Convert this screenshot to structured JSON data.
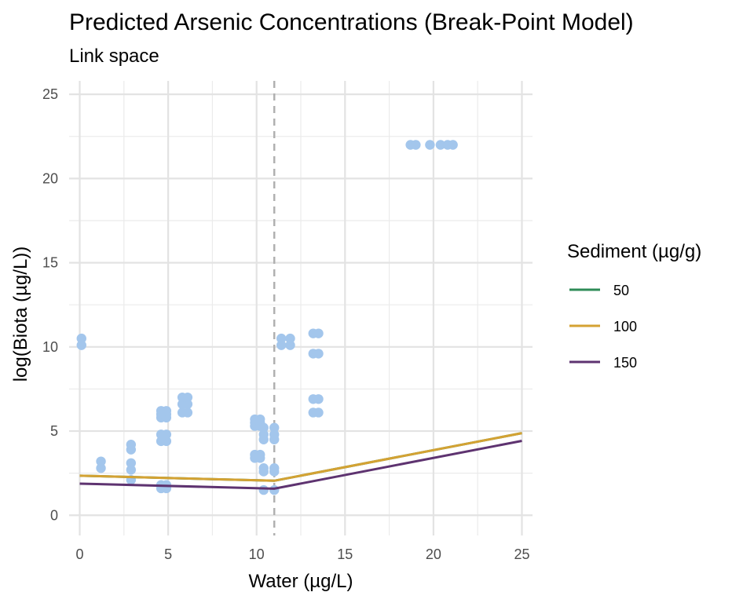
{
  "chart_data": {
    "type": "scatter",
    "title": "Predicted Arsenic Concentrations (Break-Point Model)",
    "subtitle": "Link space",
    "xlabel": "Water (µg/L)",
    "ylabel": "log(Biota (µg/L))",
    "xlim": [
      -0.6,
      25.6
    ],
    "ylim": [
      -1.2,
      25.8
    ],
    "x_ticks": [
      0,
      5,
      10,
      15,
      20,
      25
    ],
    "y_ticks": [
      0,
      5,
      10,
      15,
      20,
      25
    ],
    "x_tick_labels": [
      "0",
      "5",
      "10",
      "15",
      "20",
      "25"
    ],
    "y_tick_labels": [
      "0",
      "5",
      "10",
      "15",
      "20",
      "25"
    ],
    "grid": true,
    "point_color": "#a3c6ec",
    "breakpoint": {
      "x": 11,
      "style": "dashed",
      "color": "#b0b0b0"
    },
    "points": [
      [
        0.1,
        10.1
      ],
      [
        0.1,
        10.5
      ],
      [
        1.2,
        2.8
      ],
      [
        1.2,
        3.2
      ],
      [
        2.9,
        2.1
      ],
      [
        2.9,
        2.7
      ],
      [
        2.9,
        3.1
      ],
      [
        2.9,
        3.9
      ],
      [
        2.9,
        4.2
      ],
      [
        4.6,
        1.6
      ],
      [
        4.6,
        1.8
      ],
      [
        4.6,
        4.4
      ],
      [
        4.6,
        4.8
      ],
      [
        4.6,
        5.8
      ],
      [
        4.6,
        6.0
      ],
      [
        4.6,
        6.2
      ],
      [
        4.9,
        1.6
      ],
      [
        4.9,
        1.8
      ],
      [
        4.9,
        4.4
      ],
      [
        4.9,
        4.8
      ],
      [
        4.9,
        5.8
      ],
      [
        4.9,
        6.0
      ],
      [
        4.9,
        6.2
      ],
      [
        5.8,
        6.1
      ],
      [
        5.8,
        6.6
      ],
      [
        5.8,
        7.0
      ],
      [
        6.1,
        6.1
      ],
      [
        6.1,
        6.6
      ],
      [
        6.1,
        7.0
      ],
      [
        9.9,
        3.4
      ],
      [
        9.9,
        3.6
      ],
      [
        9.9,
        5.3
      ],
      [
        9.9,
        5.5
      ],
      [
        9.9,
        5.7
      ],
      [
        10.2,
        3.4
      ],
      [
        10.2,
        3.6
      ],
      [
        10.2,
        5.3
      ],
      [
        10.2,
        5.5
      ],
      [
        10.2,
        5.7
      ],
      [
        10.4,
        1.5
      ],
      [
        10.4,
        2.6
      ],
      [
        10.4,
        2.8
      ],
      [
        10.4,
        4.5
      ],
      [
        10.4,
        4.8
      ],
      [
        10.4,
        5.2
      ],
      [
        11.0,
        1.5
      ],
      [
        11.0,
        2.6
      ],
      [
        11.0,
        2.8
      ],
      [
        11.0,
        4.5
      ],
      [
        11.0,
        4.8
      ],
      [
        11.0,
        5.2
      ],
      [
        11.4,
        10.1
      ],
      [
        11.4,
        10.5
      ],
      [
        11.9,
        10.1
      ],
      [
        11.9,
        10.5
      ],
      [
        13.2,
        6.1
      ],
      [
        13.2,
        6.9
      ],
      [
        13.2,
        9.6
      ],
      [
        13.2,
        10.8
      ],
      [
        13.5,
        6.1
      ],
      [
        13.5,
        6.9
      ],
      [
        13.5,
        9.6
      ],
      [
        13.5,
        10.8
      ],
      [
        18.7,
        22.0
      ],
      [
        19.0,
        22.0
      ],
      [
        19.8,
        22.0
      ],
      [
        20.4,
        22.0
      ],
      [
        20.8,
        22.0
      ],
      [
        21.1,
        22.0
      ]
    ],
    "series": [
      {
        "name": "50",
        "color": "#2e8b57",
        "x": [
          0,
          11,
          25
        ],
        "y": [
          2.35,
          2.05,
          4.88
        ]
      },
      {
        "name": "100",
        "color": "#d4a233",
        "x": [
          0,
          11,
          25
        ],
        "y": [
          2.35,
          2.05,
          4.88
        ]
      },
      {
        "name": "150",
        "color": "#5e3370",
        "x": [
          0,
          11,
          25
        ],
        "y": [
          1.88,
          1.58,
          4.42
        ]
      }
    ],
    "legend": {
      "title": "Sediment (µg/g)",
      "position": "right",
      "items": [
        "50",
        "100",
        "150"
      ]
    }
  }
}
